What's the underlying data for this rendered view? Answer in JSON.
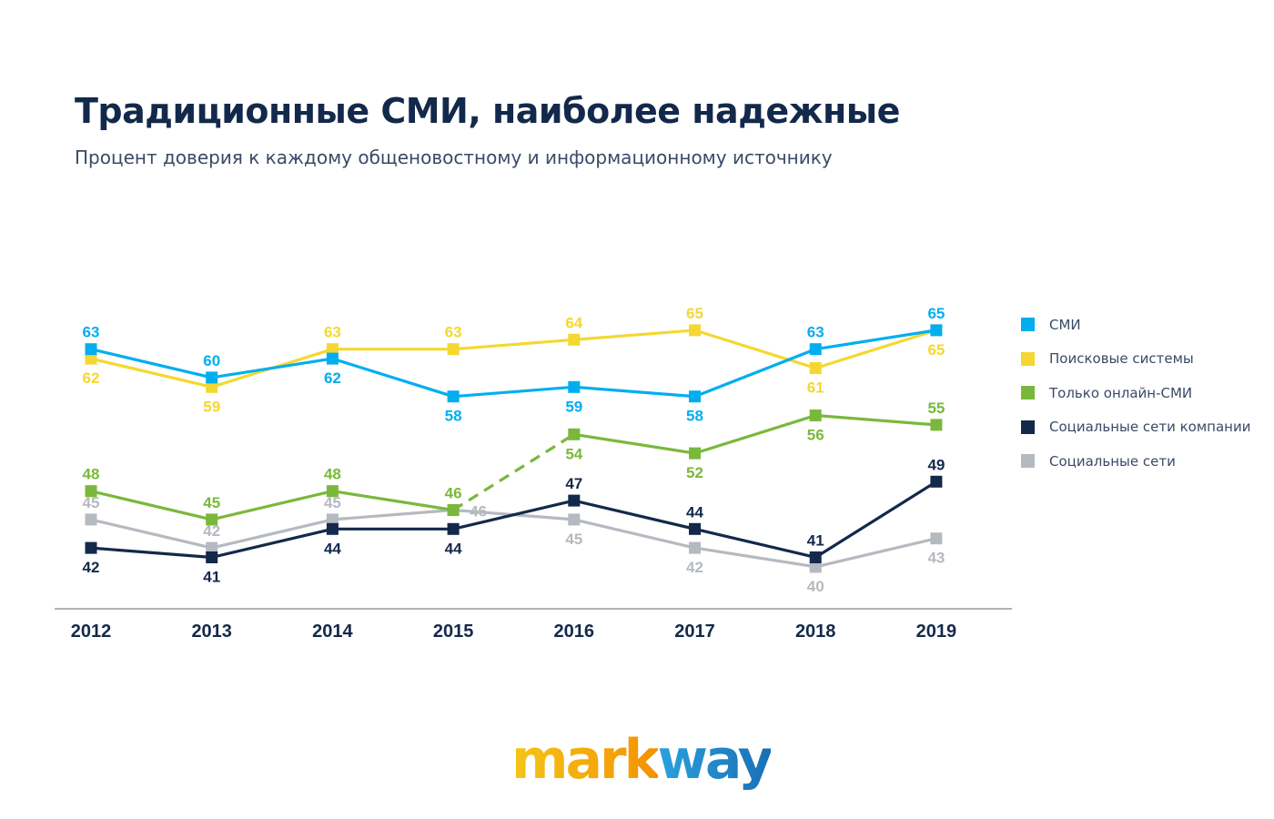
{
  "header": {
    "title": "Традиционные СМИ, наиболее надежные",
    "subtitle": "Процент доверия к каждому общеновостному и информационному источнику"
  },
  "logo": {
    "part1": "mark",
    "part2": "way"
  },
  "chart_data": {
    "type": "line",
    "title": "Традиционные СМИ, наиболее надежные",
    "subtitle": "Процент доверия к каждому общеновостному и информационному источнику",
    "xlabel": "",
    "ylabel": "",
    "categories": [
      "2012",
      "2013",
      "2014",
      "2015",
      "2016",
      "2017",
      "2018",
      "2019"
    ],
    "ylim": [
      38,
      68
    ],
    "grid": false,
    "legend_position": "right",
    "series": [
      {
        "name": "СМИ",
        "color": "#00aeef",
        "values": [
          63,
          60,
          62,
          58,
          59,
          58,
          63,
          65
        ],
        "label_pos": [
          "above",
          "above",
          "below",
          "below",
          "below",
          "below",
          "above",
          "above"
        ]
      },
      {
        "name": "Поисковые системы",
        "color": "#f5d731",
        "values": [
          62,
          59,
          63,
          63,
          64,
          65,
          61,
          65
        ],
        "label_pos": [
          "below",
          "below",
          "above",
          "above",
          "above",
          "above",
          "below",
          "below"
        ]
      },
      {
        "name": "Только онлайн-СМИ",
        "color": "#7ab83c",
        "values": [
          48,
          45,
          48,
          46,
          54,
          52,
          56,
          55
        ],
        "label_pos": [
          "above",
          "above",
          "above",
          "above",
          "below",
          "below",
          "below",
          "above"
        ],
        "dashed_segments": [
          3
        ]
      },
      {
        "name": "Социальные сети компании",
        "color": "#13294b",
        "values": [
          42,
          41,
          44,
          44,
          47,
          44,
          41,
          49
        ],
        "label_pos": [
          "below",
          "below",
          "below",
          "below",
          "above",
          "above",
          "above",
          "above"
        ]
      },
      {
        "name": "Социальные сети",
        "color": "#b5b9c0",
        "values": [
          45,
          42,
          45,
          46,
          45,
          42,
          40,
          43
        ],
        "label_pos": [
          "above",
          "above",
          "above",
          "right",
          "below",
          "below",
          "below",
          "below"
        ]
      }
    ]
  }
}
